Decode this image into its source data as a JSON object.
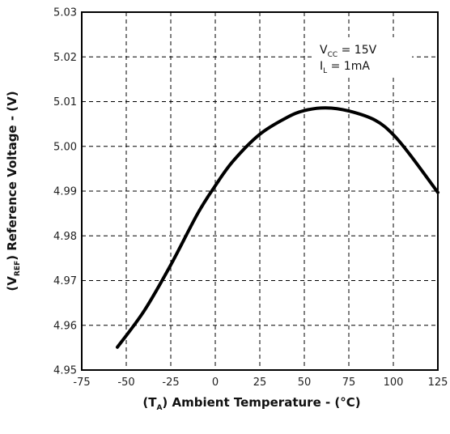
{
  "chart_data": {
    "type": "line",
    "xlabel": {
      "prefix": "(T",
      "sub": "A",
      "suffix": ")  Ambient Temperature - (°C)"
    },
    "ylabel": {
      "prefix": "(V",
      "sub": "REF",
      "suffix": ")  Reference Voltage - (V)"
    },
    "xlim": [
      -75,
      125
    ],
    "ylim": [
      4.95,
      5.03
    ],
    "x_ticks": [
      "-75",
      "-50",
      "-25",
      "0",
      "25",
      "50",
      "75",
      "100",
      "125"
    ],
    "y_ticks": [
      "4.95",
      "4.96",
      "4.97",
      "4.98",
      "4.99",
      "5.00",
      "5.01",
      "5.02",
      "5.03"
    ],
    "grid": true,
    "annotations": [
      {
        "prefix": "V",
        "sub": "CC",
        "suffix": " = 15V"
      },
      {
        "prefix": "I",
        "sub": "L",
        "suffix": " = 1mA"
      }
    ],
    "series": [
      {
        "x": [
          -55,
          -40,
          -25,
          -10,
          0,
          10,
          25,
          40,
          50,
          62,
          75,
          90,
          100,
          110,
          125
        ],
        "y": [
          4.9551,
          4.9632,
          4.9735,
          4.9849,
          4.9912,
          4.9967,
          5.0027,
          5.0064,
          5.008,
          5.0086,
          5.0079,
          5.0058,
          5.0026,
          4.9978,
          4.9897
        ]
      }
    ]
  }
}
